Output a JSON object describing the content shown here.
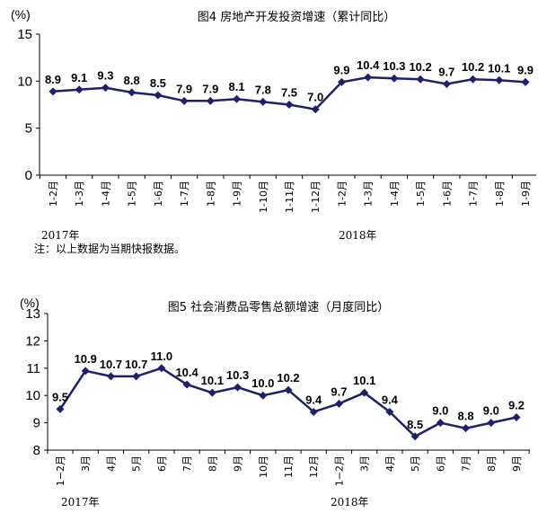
{
  "chart_data": [
    {
      "type": "line",
      "title": "图4   房地产开发投资增速（累计同比）",
      "unit": "(%)",
      "ylim": [
        0,
        15
      ],
      "yticks": [
        "0",
        "5",
        "10",
        "15"
      ],
      "grid": false,
      "categories": [
        "1-2月",
        "1-3月",
        "1-4月",
        "1-5月",
        "1-6月",
        "1-7月",
        "1-8月",
        "1-9月",
        "1-10月",
        "1-11月",
        "1-12月",
        "1-2月",
        "1-3月",
        "1-4月",
        "1-5月",
        "1-6月",
        "1-7月",
        "1-8月",
        "1-9月"
      ],
      "values": [
        8.9,
        9.1,
        9.3,
        8.8,
        8.5,
        7.9,
        7.9,
        8.1,
        7.8,
        7.5,
        7.0,
        9.9,
        10.4,
        10.3,
        10.2,
        9.7,
        10.2,
        10.1,
        9.9
      ],
      "labels": [
        "8.9",
        "9.1",
        "9.3",
        "8.8",
        "8.5",
        "7.9",
        "7.9",
        "8.1",
        "7.8",
        "7.5",
        "7.0",
        "9.9",
        "10.4",
        "10.3",
        "10.2",
        "9.7",
        "10.2",
        "10.1",
        "9.9"
      ],
      "year_labels": [
        "2017年",
        "2018年"
      ],
      "note": "注：以上数据为当期快报数据。",
      "line_color": "#1f1f6b"
    },
    {
      "type": "line",
      "title": "图5   社会消费品零售总额增速（月度同比）",
      "unit": "(%)",
      "ylim": [
        8,
        13
      ],
      "yticks": [
        "8",
        "9",
        "10",
        "11",
        "12",
        "13"
      ],
      "grid": false,
      "categories": [
        "1−2月",
        "3月",
        "4月",
        "5月",
        "6月",
        "7月",
        "8月",
        "9月",
        "10月",
        "11月",
        "12月",
        "1−2月",
        "3月",
        "4月",
        "5月",
        "6月",
        "7月",
        "8月",
        "9月"
      ],
      "values": [
        9.5,
        10.9,
        10.7,
        10.7,
        11.0,
        10.4,
        10.1,
        10.3,
        10.0,
        10.2,
        9.4,
        9.7,
        10.1,
        9.4,
        8.5,
        9.0,
        8.8,
        9.0,
        9.2
      ],
      "labels": [
        "9.5",
        "10.9",
        "10.7",
        "10.7",
        "11.0",
        "10.4",
        "10.1",
        "10.3",
        "10.0",
        "10.2",
        "9.4",
        "9.7",
        "10.1",
        "9.4",
        "8.5",
        "9.0",
        "8.8",
        "9.0",
        "9.2"
      ],
      "year_labels": [
        "2017年",
        "2018年"
      ],
      "line_color": "#1f1f6b"
    }
  ]
}
